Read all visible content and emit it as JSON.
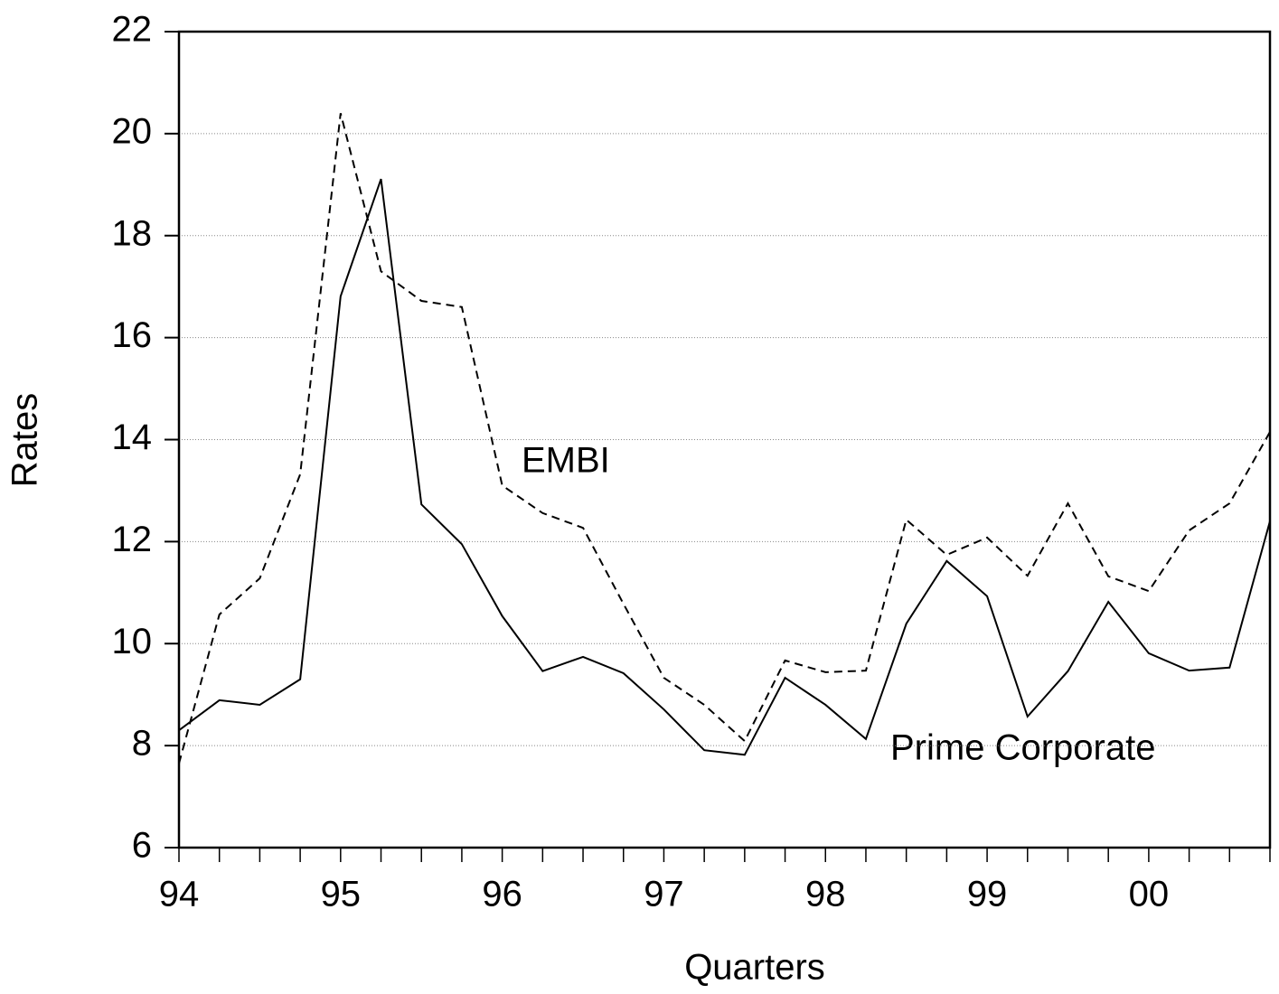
{
  "chart_data": {
    "type": "line",
    "xlabel": "Quarters",
    "ylabel": "Rates",
    "categories": [
      "94",
      null,
      null,
      null,
      "95",
      null,
      null,
      null,
      "96",
      null,
      null,
      null,
      "97",
      null,
      null,
      null,
      "98",
      null,
      null,
      null,
      "99",
      null,
      null,
      null,
      "00",
      null,
      null,
      null
    ],
    "series": [
      {
        "name": "EMBI",
        "color": "#000000",
        "dash": true,
        "values": [
          7.65,
          10.57,
          11.28,
          13.32,
          20.4,
          17.3,
          16.72,
          16.6,
          13.1,
          12.56,
          12.27,
          10.78,
          9.33,
          8.8,
          8.09,
          9.67,
          9.44,
          9.47,
          12.43,
          11.74,
          12.08,
          11.33,
          12.75,
          11.32,
          11.03,
          12.22,
          12.75,
          14.15
        ]
      },
      {
        "name": "Prime Corporate",
        "color": "#000000",
        "dash": false,
        "values": [
          8.3,
          8.89,
          8.8,
          9.3,
          16.81,
          19.11,
          12.73,
          11.95,
          10.54,
          9.46,
          9.74,
          9.42,
          8.71,
          7.91,
          7.82,
          9.33,
          8.8,
          8.13,
          10.39,
          11.62,
          10.93,
          8.57,
          9.46,
          10.82,
          9.81,
          9.47,
          9.53,
          12.4
        ]
      }
    ],
    "ylim": [
      6,
      22
    ],
    "yticks": [
      6,
      8,
      10,
      12,
      14,
      16,
      18,
      20,
      22
    ],
    "grid": true
  }
}
